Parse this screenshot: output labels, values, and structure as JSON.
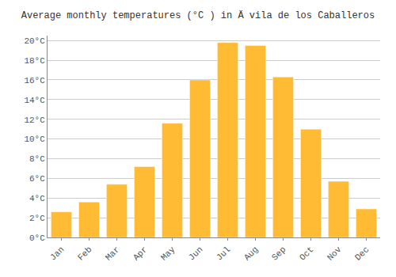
{
  "chart_data": {
    "type": "bar",
    "title": "Average monthly temperatures (°C ) in Ä vila de los Caballeros",
    "categories": [
      "Jan",
      "Feb",
      "Mar",
      "Apr",
      "May",
      "Jun",
      "Jul",
      "Aug",
      "Sep",
      "Oct",
      "Nov",
      "Dec"
    ],
    "values": [
      2.6,
      3.6,
      5.4,
      7.2,
      11.6,
      16.0,
      19.8,
      19.5,
      16.3,
      11.0,
      5.7,
      2.9
    ],
    "color": "#FFBB33",
    "ylim": [
      0,
      20.5
    ],
    "yticks": [
      {
        "value": 0,
        "label": "0°C"
      },
      {
        "value": 2,
        "label": "2°C"
      },
      {
        "value": 4,
        "label": "4°C"
      },
      {
        "value": 6,
        "label": "6°C"
      },
      {
        "value": 8,
        "label": "8°C"
      },
      {
        "value": 10,
        "label": "10°C"
      },
      {
        "value": 12,
        "label": "12°C"
      },
      {
        "value": 14,
        "label": "14°C"
      },
      {
        "value": 16,
        "label": "16°C"
      },
      {
        "value": 18,
        "label": "18°C"
      },
      {
        "value": 20,
        "label": "20°C"
      }
    ],
    "grid": true
  }
}
